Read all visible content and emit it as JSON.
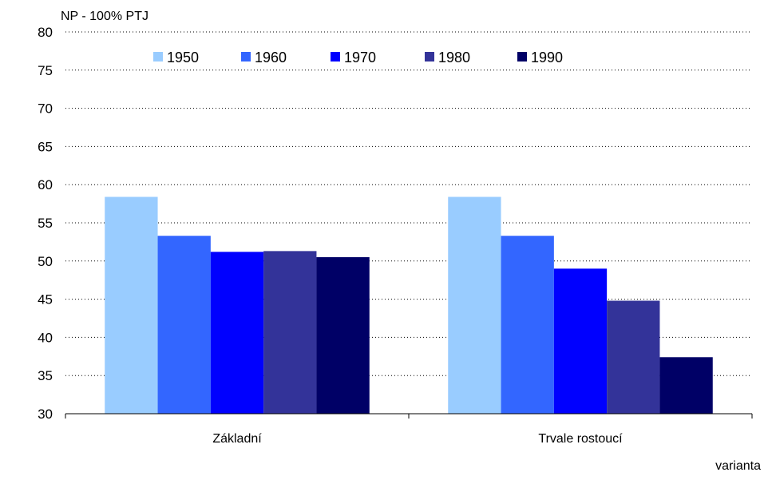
{
  "chart_data": {
    "type": "bar",
    "ylabel": "NP - 100% PTJ",
    "xlabel": "varianta",
    "ylim": [
      30,
      80
    ],
    "yticks": [
      30,
      35,
      40,
      45,
      50,
      55,
      60,
      65,
      70,
      75,
      80
    ],
    "grid": true,
    "legend_position": "top",
    "categories": [
      "Základní",
      "Trvale rostoucí"
    ],
    "series": [
      {
        "name": "1950",
        "color": "#99ccff",
        "values": [
          58.4,
          58.4
        ]
      },
      {
        "name": "1960",
        "color": "#3366ff",
        "values": [
          53.3,
          53.3
        ]
      },
      {
        "name": "1970",
        "color": "#0000ff",
        "values": [
          51.2,
          49.0
        ]
      },
      {
        "name": "1980",
        "color": "#333399",
        "values": [
          51.3,
          44.8
        ]
      },
      {
        "name": "1990",
        "color": "#000066",
        "values": [
          50.5,
          37.4
        ]
      }
    ]
  }
}
